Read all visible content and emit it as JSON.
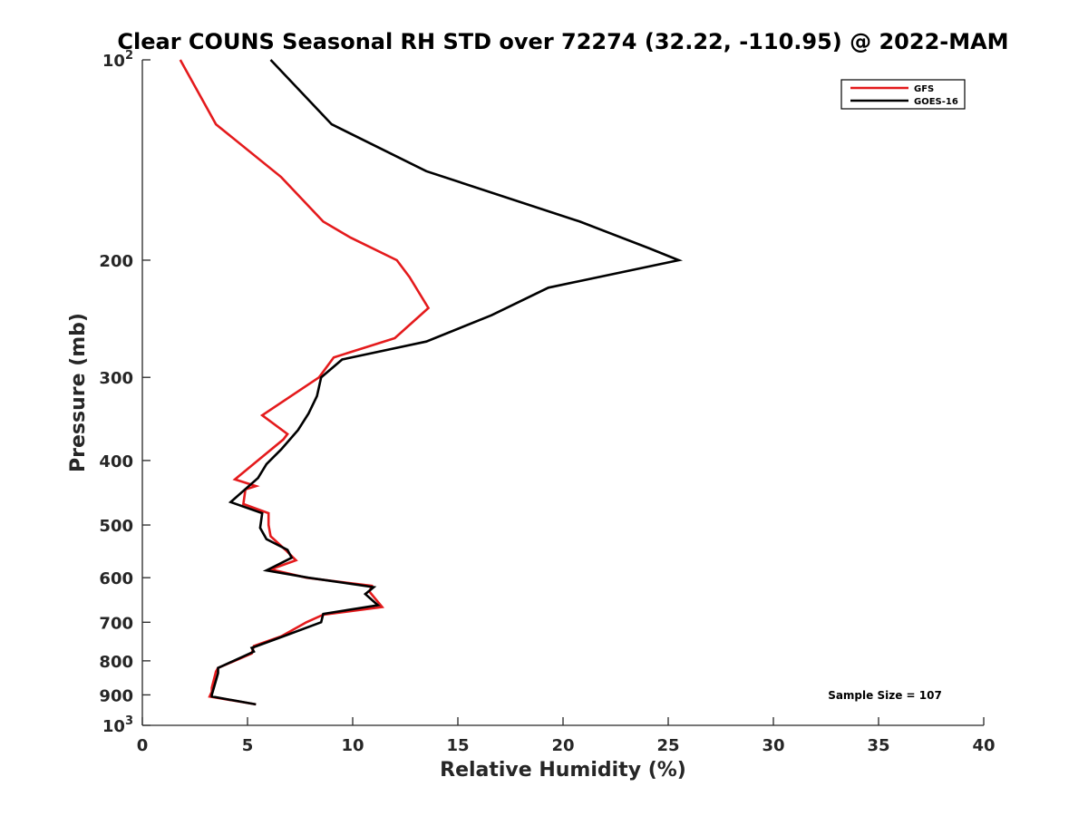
{
  "chart_data": {
    "type": "line",
    "title": "Clear COUNS Seasonal RH STD over 72274 (32.22, -110.95) @ 2022-MAM",
    "xlabel": "Relative Humidity (%)",
    "ylabel": "Pressure (mb)",
    "xlim": [
      0,
      40
    ],
    "ylim": [
      100,
      1000
    ],
    "yscale": "log",
    "y_inverted": true,
    "x_ticks": [
      0,
      5,
      10,
      15,
      20,
      25,
      30,
      35,
      40
    ],
    "x_tick_labels": [
      "0",
      "5",
      "10",
      "15",
      "20",
      "25",
      "30",
      "35",
      "40"
    ],
    "y_ticks": [
      100,
      200,
      300,
      400,
      500,
      600,
      700,
      800,
      900,
      1000
    ],
    "y_tick_labels": [
      {
        "base": "10",
        "exp": "2"
      },
      {
        "base": "200",
        "exp": ""
      },
      {
        "base": "300",
        "exp": ""
      },
      {
        "base": "400",
        "exp": ""
      },
      {
        "base": "500",
        "exp": ""
      },
      {
        "base": "600",
        "exp": ""
      },
      {
        "base": "700",
        "exp": ""
      },
      {
        "base": "800",
        "exp": ""
      },
      {
        "base": "900",
        "exp": ""
      },
      {
        "base": "10",
        "exp": "3"
      }
    ],
    "legend_position": "top-right",
    "annotation": "Sample Size = 107",
    "series": [
      {
        "name": "GFS",
        "color": "#e41a1c",
        "points": [
          [
            1.8,
            100
          ],
          [
            3.5,
            125
          ],
          [
            6.6,
            150
          ],
          [
            8.6,
            175
          ],
          [
            9.9,
            185
          ],
          [
            12.1,
            200
          ],
          [
            12.7,
            212
          ],
          [
            13.6,
            236
          ],
          [
            12.0,
            262
          ],
          [
            9.1,
            280
          ],
          [
            8.4,
            300
          ],
          [
            5.7,
            342
          ],
          [
            6.9,
            365
          ],
          [
            6.7,
            372
          ],
          [
            4.4,
            427
          ],
          [
            5.4,
            437
          ],
          [
            4.9,
            442
          ],
          [
            4.8,
            465
          ],
          [
            6.0,
            480
          ],
          [
            6.0,
            500
          ],
          [
            6.1,
            520
          ],
          [
            6.8,
            545
          ],
          [
            7.3,
            565
          ],
          [
            6.1,
            583
          ],
          [
            7.8,
            600
          ],
          [
            10.9,
            617
          ],
          [
            10.8,
            630
          ],
          [
            11.4,
            664
          ],
          [
            8.6,
            682
          ],
          [
            7.8,
            700
          ],
          [
            6.6,
            735
          ],
          [
            5.3,
            760
          ],
          [
            5.2,
            780
          ],
          [
            3.6,
            820
          ],
          [
            3.5,
            830
          ],
          [
            3.3,
            878
          ],
          [
            3.3,
            890
          ],
          [
            3.2,
            905
          ],
          [
            5.4,
            930
          ]
        ]
      },
      {
        "name": "GOES-16",
        "color": "#000000",
        "points": [
          [
            6.1,
            100
          ],
          [
            9.0,
            125
          ],
          [
            13.5,
            147
          ],
          [
            20.8,
            175
          ],
          [
            24.1,
            192
          ],
          [
            25.5,
            200
          ],
          [
            19.3,
            220
          ],
          [
            16.6,
            242
          ],
          [
            13.5,
            265
          ],
          [
            9.5,
            282
          ],
          [
            8.5,
            300
          ],
          [
            8.3,
            320
          ],
          [
            7.9,
            340
          ],
          [
            7.4,
            360
          ],
          [
            6.6,
            385
          ],
          [
            5.9,
            405
          ],
          [
            5.5,
            425
          ],
          [
            4.2,
            462
          ],
          [
            5.7,
            480
          ],
          [
            5.6,
            505
          ],
          [
            5.9,
            525
          ],
          [
            6.9,
            545
          ],
          [
            7.1,
            560
          ],
          [
            5.9,
            585
          ],
          [
            7.9,
            600
          ],
          [
            11.0,
            620
          ],
          [
            10.6,
            635
          ],
          [
            11.2,
            660
          ],
          [
            8.6,
            680
          ],
          [
            8.5,
            700
          ],
          [
            6.7,
            735
          ],
          [
            5.2,
            765
          ],
          [
            5.3,
            775
          ],
          [
            3.6,
            820
          ],
          [
            3.6,
            835
          ],
          [
            3.4,
            878
          ],
          [
            3.3,
            900
          ],
          [
            3.3,
            905
          ],
          [
            5.4,
            930
          ]
        ]
      }
    ]
  }
}
